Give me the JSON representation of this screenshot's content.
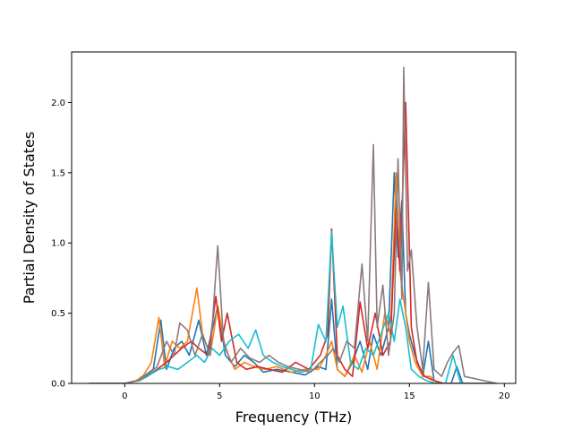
{
  "chart_data": {
    "type": "line",
    "title": "",
    "xlabel": "Frequency (THz)",
    "ylabel": "Partial Density of States",
    "xlim": [
      -2.8,
      20.6
    ],
    "ylim": [
      0.0,
      2.36
    ],
    "x_ticks": [
      0,
      5,
      10,
      15,
      20
    ],
    "y_ticks": [
      0.0,
      0.5,
      1.0,
      1.5,
      2.0
    ],
    "x_tick_labels": [
      "0",
      "5",
      "10",
      "15",
      "20"
    ],
    "y_tick_labels": [
      "0.0",
      "0.5",
      "1.0",
      "1.5",
      "2.0"
    ],
    "grid": false,
    "legend": "none",
    "series": [
      {
        "color": "#1f77b4",
        "x": [
          -1.9,
          0.0,
          0.6,
          1.0,
          1.5,
          1.9,
          2.2,
          2.6,
          3.0,
          3.4,
          3.9,
          4.3,
          4.9,
          5.3,
          5.8,
          6.3,
          6.8,
          7.3,
          8.0,
          8.8,
          9.5,
          10.2,
          10.6,
          10.9,
          11.2,
          11.6,
          12.0,
          12.4,
          12.8,
          13.1,
          13.5,
          13.9,
          14.2,
          14.4,
          14.6,
          14.8,
          15.0,
          15.3,
          15.7,
          16.0,
          16.3,
          16.8,
          17.2,
          17.5,
          17.8,
          18.2,
          19.6
        ],
        "y": [
          0.0,
          0.0,
          0.02,
          0.05,
          0.1,
          0.45,
          0.1,
          0.25,
          0.3,
          0.2,
          0.45,
          0.2,
          0.55,
          0.2,
          0.12,
          0.2,
          0.15,
          0.08,
          0.1,
          0.08,
          0.06,
          0.12,
          0.1,
          0.6,
          0.1,
          0.05,
          0.15,
          0.3,
          0.1,
          0.35,
          0.2,
          0.4,
          1.5,
          0.9,
          1.3,
          0.5,
          0.35,
          0.2,
          0.05,
          0.3,
          0.02,
          0.0,
          0.0,
          0.12,
          0.0,
          0.0,
          0.0
        ]
      },
      {
        "color": "#ff7f0e",
        "x": [
          -1.9,
          0.0,
          0.6,
          1.0,
          1.4,
          1.8,
          2.1,
          2.5,
          2.9,
          3.3,
          3.8,
          4.1,
          4.5,
          4.9,
          5.3,
          5.8,
          6.3,
          6.8,
          7.4,
          8.0,
          8.8,
          9.5,
          10.2,
          10.6,
          10.9,
          11.2,
          11.6,
          12.1,
          12.5,
          12.9,
          13.3,
          13.7,
          14.0,
          14.3,
          14.5,
          14.7,
          15.0,
          15.3,
          15.7,
          16.1,
          16.5,
          17.0,
          17.5,
          18.0,
          19.6
        ],
        "y": [
          0.0,
          0.0,
          0.02,
          0.06,
          0.15,
          0.47,
          0.12,
          0.3,
          0.25,
          0.3,
          0.68,
          0.35,
          0.2,
          0.55,
          0.25,
          0.1,
          0.15,
          0.12,
          0.1,
          0.12,
          0.08,
          0.1,
          0.1,
          0.2,
          0.3,
          0.1,
          0.05,
          0.2,
          0.08,
          0.3,
          0.1,
          0.5,
          0.35,
          1.5,
          0.8,
          0.6,
          0.3,
          0.15,
          0.05,
          0.05,
          0.0,
          0.0,
          0.0,
          0.0,
          0.0
        ]
      },
      {
        "color": "#d62728",
        "x": [
          -1.9,
          0.0,
          0.7,
          1.2,
          1.7,
          2.2,
          2.6,
          3.0,
          3.5,
          3.9,
          4.4,
          4.8,
          5.1,
          5.4,
          5.9,
          6.4,
          7.0,
          7.6,
          8.3,
          9.0,
          9.7,
          10.3,
          10.7,
          10.9,
          11.2,
          11.6,
          12.0,
          12.4,
          12.8,
          13.2,
          13.6,
          14.0,
          14.3,
          14.5,
          14.8,
          15.1,
          15.4,
          15.8,
          16.3,
          16.8,
          17.3,
          17.8,
          19.6
        ],
        "y": [
          0.0,
          0.0,
          0.02,
          0.05,
          0.1,
          0.15,
          0.2,
          0.25,
          0.3,
          0.25,
          0.2,
          0.62,
          0.3,
          0.5,
          0.15,
          0.1,
          0.12,
          0.1,
          0.08,
          0.15,
          0.1,
          0.2,
          0.35,
          1.1,
          0.2,
          0.1,
          0.05,
          0.58,
          0.25,
          0.5,
          0.2,
          0.3,
          1.25,
          0.8,
          2.0,
          0.4,
          0.15,
          0.05,
          0.02,
          0.0,
          0.0,
          0.0,
          0.0
        ]
      },
      {
        "color": "#17becf",
        "x": [
          -1.9,
          0.0,
          0.8,
          1.3,
          1.8,
          2.3,
          2.8,
          3.3,
          3.8,
          4.2,
          4.6,
          5.0,
          5.5,
          6.0,
          6.5,
          6.9,
          7.3,
          7.8,
          8.3,
          8.8,
          9.3,
          9.8,
          10.2,
          10.6,
          10.9,
          11.2,
          11.5,
          11.9,
          12.3,
          12.7,
          13.1,
          13.5,
          13.9,
          14.2,
          14.5,
          14.8,
          15.1,
          15.5,
          15.9,
          16.4,
          16.9,
          17.3,
          17.7,
          19.6
        ],
        "y": [
          0.0,
          0.0,
          0.02,
          0.06,
          0.1,
          0.12,
          0.1,
          0.15,
          0.2,
          0.15,
          0.25,
          0.2,
          0.3,
          0.35,
          0.25,
          0.38,
          0.2,
          0.15,
          0.12,
          0.1,
          0.08,
          0.1,
          0.42,
          0.3,
          1.08,
          0.4,
          0.55,
          0.15,
          0.1,
          0.25,
          0.2,
          0.35,
          0.5,
          0.3,
          0.6,
          0.4,
          0.1,
          0.05,
          0.02,
          0.0,
          0.0,
          0.2,
          0.0,
          0.0
        ]
      },
      {
        "color": "#8c7a7c",
        "x": [
          -1.9,
          0.0,
          0.7,
          1.2,
          1.7,
          2.2,
          2.6,
          2.9,
          3.3,
          3.7,
          4.1,
          4.5,
          4.9,
          5.2,
          5.6,
          6.1,
          6.6,
          7.1,
          7.6,
          8.1,
          8.6,
          9.2,
          9.8,
          10.3,
          10.7,
          11.0,
          11.3,
          11.7,
          12.1,
          12.5,
          12.8,
          13.1,
          13.3,
          13.6,
          13.9,
          14.2,
          14.4,
          14.6,
          14.7,
          14.9,
          15.1,
          15.4,
          15.7,
          16.0,
          16.3,
          16.7,
          17.0,
          17.3,
          17.6,
          17.9,
          19.6
        ],
        "y": [
          0.0,
          0.0,
          0.02,
          0.06,
          0.12,
          0.3,
          0.2,
          0.43,
          0.38,
          0.2,
          0.35,
          0.2,
          0.98,
          0.3,
          0.15,
          0.25,
          0.18,
          0.15,
          0.2,
          0.15,
          0.12,
          0.1,
          0.08,
          0.15,
          0.2,
          0.25,
          0.15,
          0.3,
          0.25,
          0.85,
          0.3,
          1.7,
          0.4,
          0.7,
          0.2,
          0.5,
          1.6,
          0.6,
          2.25,
          0.8,
          0.95,
          0.4,
          0.1,
          0.72,
          0.1,
          0.05,
          0.15,
          0.22,
          0.27,
          0.05,
          0.0
        ]
      }
    ]
  }
}
